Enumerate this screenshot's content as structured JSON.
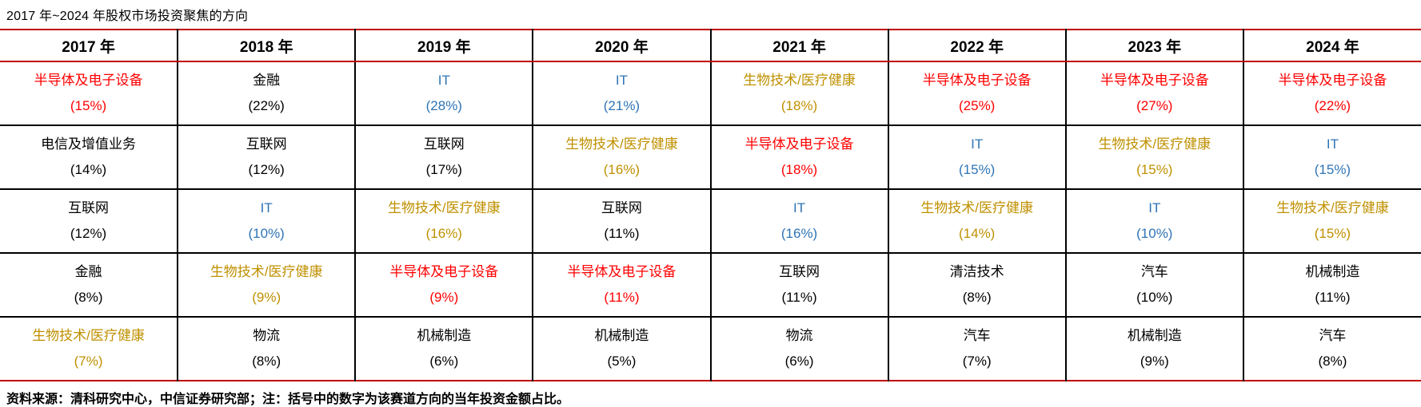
{
  "title": "2017 年~2024 年股权市场投资聚焦的方向",
  "footer": "资料来源：清科研究中心，中信证券研究部；注：括号中的数字为该赛道方向的当年投资金额占比。",
  "colors": {
    "red": "#FF0000",
    "blue": "#2E74B5",
    "gold": "#BF9000",
    "black": "#000000",
    "rule": "#C00000"
  },
  "table": {
    "columns": [
      "2017 年",
      "2018 年",
      "2019 年",
      "2020 年",
      "2021 年",
      "2022 年",
      "2023 年",
      "2024 年"
    ],
    "rows": [
      [
        {
          "industry": "半导体及电子设备",
          "share": "(15%)",
          "color": "red"
        },
        {
          "industry": "金融",
          "share": "(22%)",
          "color": "black"
        },
        {
          "industry": "IT",
          "share": "(28%)",
          "color": "blue"
        },
        {
          "industry": "IT",
          "share": "(21%)",
          "color": "blue"
        },
        {
          "industry": "生物技术/医疗健康",
          "share": "(18%)",
          "color": "gold"
        },
        {
          "industry": "半导体及电子设备",
          "share": "(25%)",
          "color": "red"
        },
        {
          "industry": "半导体及电子设备",
          "share": "(27%)",
          "color": "red"
        },
        {
          "industry": "半导体及电子设备",
          "share": "(22%)",
          "color": "red"
        }
      ],
      [
        {
          "industry": "电信及增值业务",
          "share": "(14%)",
          "color": "black"
        },
        {
          "industry": "互联网",
          "share": "(12%)",
          "color": "black"
        },
        {
          "industry": "互联网",
          "share": "(17%)",
          "color": "black"
        },
        {
          "industry": "生物技术/医疗健康",
          "share": "(16%)",
          "color": "gold"
        },
        {
          "industry": "半导体及电子设备",
          "share": "(18%)",
          "color": "red"
        },
        {
          "industry": "IT",
          "share": "(15%)",
          "color": "blue"
        },
        {
          "industry": "生物技术/医疗健康",
          "share": "(15%)",
          "color": "gold"
        },
        {
          "industry": "IT",
          "share": "(15%)",
          "color": "blue"
        }
      ],
      [
        {
          "industry": "互联网",
          "share": "(12%)",
          "color": "black"
        },
        {
          "industry": "IT",
          "share": "(10%)",
          "color": "blue"
        },
        {
          "industry": "生物技术/医疗健康",
          "share": "(16%)",
          "color": "gold"
        },
        {
          "industry": "互联网",
          "share": "(11%)",
          "color": "black"
        },
        {
          "industry": "IT",
          "share": "(16%)",
          "color": "blue"
        },
        {
          "industry": "生物技术/医疗健康",
          "share": "(14%)",
          "color": "gold"
        },
        {
          "industry": "IT",
          "share": "(10%)",
          "color": "blue"
        },
        {
          "industry": "生物技术/医疗健康",
          "share": "(15%)",
          "color": "gold"
        }
      ],
      [
        {
          "industry": "金融",
          "share": "(8%)",
          "color": "black"
        },
        {
          "industry": "生物技术/医疗健康",
          "share": "(9%)",
          "color": "gold"
        },
        {
          "industry": "半导体及电子设备",
          "share": "(9%)",
          "color": "red"
        },
        {
          "industry": "半导体及电子设备",
          "share": "(11%)",
          "color": "red"
        },
        {
          "industry": "互联网",
          "share": "(11%)",
          "color": "black"
        },
        {
          "industry": "清洁技术",
          "share": "(8%)",
          "color": "black"
        },
        {
          "industry": "汽车",
          "share": "(10%)",
          "color": "black"
        },
        {
          "industry": "机械制造",
          "share": "(11%)",
          "color": "black"
        }
      ],
      [
        {
          "industry": "生物技术/医疗健康",
          "share": "(7%)",
          "color": "gold"
        },
        {
          "industry": "物流",
          "share": "(8%)",
          "color": "black"
        },
        {
          "industry": "机械制造",
          "share": "(6%)",
          "color": "black"
        },
        {
          "industry": "机械制造",
          "share": "(5%)",
          "color": "black"
        },
        {
          "industry": "物流",
          "share": "(6%)",
          "color": "black"
        },
        {
          "industry": "汽车",
          "share": "(7%)",
          "color": "black"
        },
        {
          "industry": "机械制造",
          "share": "(9%)",
          "color": "black"
        },
        {
          "industry": "汽车",
          "share": "(8%)",
          "color": "black"
        }
      ]
    ]
  }
}
